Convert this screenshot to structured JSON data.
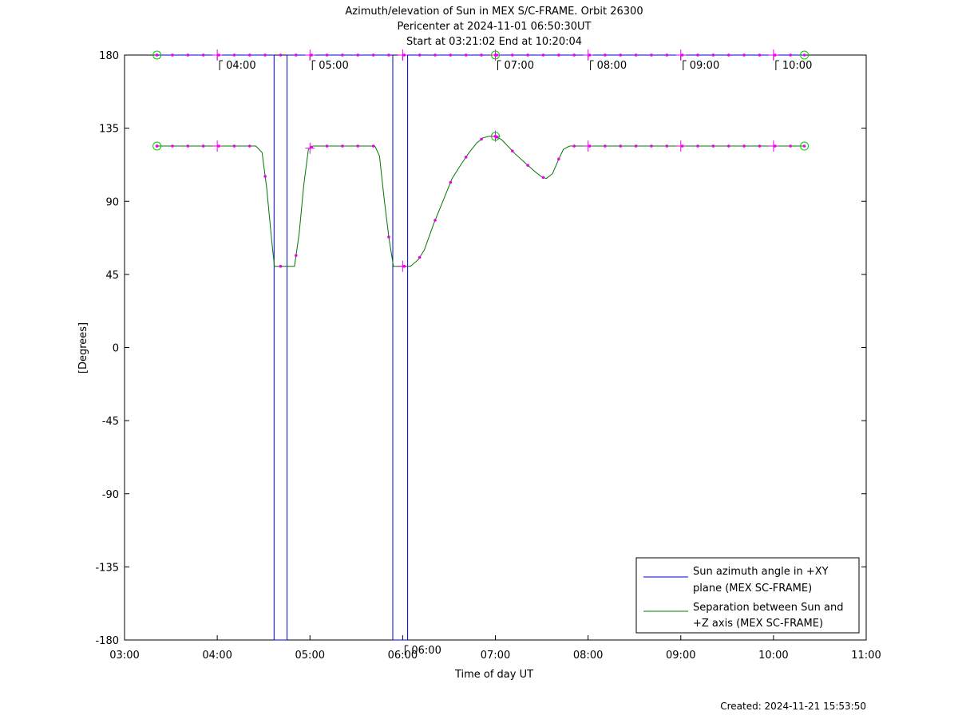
{
  "chart_data": {
    "type": "line",
    "title_lines": [
      "Azimuth/elevation of Sun in MEX S/C-FRAME.  Orbit 26300",
      "Pericenter at 2024-11-01 06:50:30UT",
      "Start at 03:21:02 End at 10:20:04"
    ],
    "xlabel": "Time of day UT",
    "ylabel": "[Degrees]",
    "x_range_minutes": [
      180,
      660
    ],
    "x_ticks": [
      {
        "m": 180,
        "label": "03:00"
      },
      {
        "m": 240,
        "label": "04:00"
      },
      {
        "m": 300,
        "label": "05:00"
      },
      {
        "m": 360,
        "label": "06:00"
      },
      {
        "m": 420,
        "label": "07:00"
      },
      {
        "m": 480,
        "label": "08:00"
      },
      {
        "m": 540,
        "label": "09:00"
      },
      {
        "m": 600,
        "label": "10:00"
      },
      {
        "m": 660,
        "label": "11:00"
      }
    ],
    "ylim": [
      -180,
      180
    ],
    "y_ticks": [
      180,
      135,
      90,
      45,
      0,
      -45,
      -90,
      -135,
      -180
    ],
    "grid": false,
    "legend_position": "bottom-right",
    "series": [
      {
        "name": "Sun azimuth angle in +XY plane (MEX SC-FRAME)",
        "legend_lines": [
          "Sun azimuth angle in +XY",
          "plane (MEX SC-FRAME)"
        ],
        "color": "#0000cc",
        "points": [
          [
            201,
            180
          ],
          [
            276.8,
            180
          ],
          [
            276.8,
            -180
          ],
          [
            285.2,
            -180
          ],
          [
            285.2,
            180
          ],
          [
            353.6,
            180
          ],
          [
            353.6,
            -180
          ],
          [
            363.2,
            -180
          ],
          [
            363.2,
            180
          ],
          [
            620,
            180
          ]
        ]
      },
      {
        "name": "Separation between Sun and +Z axis (MEX SC-FRAME)",
        "legend_lines": [
          "Separation between Sun and",
          "+Z axis (MEX SC-FRAME)"
        ],
        "color": "#007700",
        "points": [
          [
            201,
            124
          ],
          [
            265,
            124
          ],
          [
            269,
            120
          ],
          [
            272,
            98
          ],
          [
            275,
            68
          ],
          [
            277,
            50
          ],
          [
            290,
            50
          ],
          [
            293,
            70
          ],
          [
            296,
            100
          ],
          [
            299,
            122
          ],
          [
            302,
            124
          ],
          [
            342,
            124
          ],
          [
            345,
            118
          ],
          [
            348,
            92
          ],
          [
            351,
            68
          ],
          [
            354,
            50
          ],
          [
            365,
            50
          ],
          [
            370,
            54
          ],
          [
            374,
            60
          ],
          [
            380,
            76
          ],
          [
            386,
            90
          ],
          [
            392,
            104
          ],
          [
            398,
            113
          ],
          [
            403,
            120
          ],
          [
            408,
            126
          ],
          [
            412,
            129
          ],
          [
            416,
            130
          ],
          [
            420,
            130
          ],
          [
            424,
            128
          ],
          [
            428,
            124
          ],
          [
            433,
            119
          ],
          [
            440,
            113
          ],
          [
            446,
            108
          ],
          [
            450,
            105
          ],
          [
            453,
            104
          ],
          [
            457,
            107
          ],
          [
            461,
            116
          ],
          [
            464,
            122
          ],
          [
            468,
            124
          ],
          [
            620,
            124
          ]
        ]
      }
    ],
    "annotations": {
      "marker_color": "#ee00ee",
      "circle_color": "#00cc00",
      "az_labels": [
        {
          "m": 240,
          "label": "04:00"
        },
        {
          "m": 300,
          "label": "05:00"
        },
        {
          "m": 360,
          "label": "06:00"
        },
        {
          "m": 420,
          "label": "07:00"
        },
        {
          "m": 480,
          "label": "08:00"
        },
        {
          "m": 540,
          "label": "09:00"
        },
        {
          "m": 600,
          "label": "10:00"
        }
      ],
      "circle_times": [
        201,
        420,
        620
      ]
    },
    "footer": "Created: 2024-11-21 15:53:50"
  }
}
